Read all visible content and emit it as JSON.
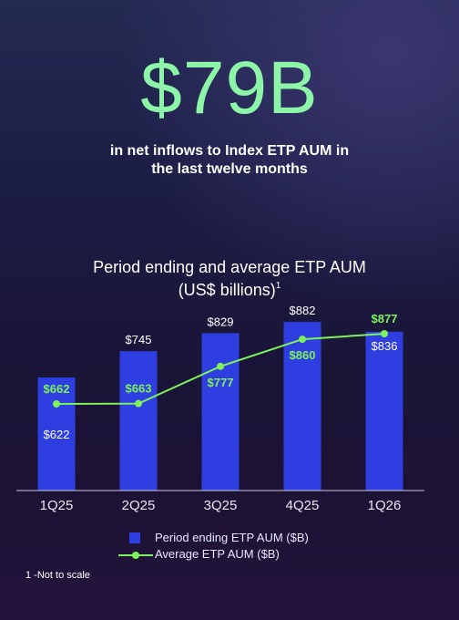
{
  "headline": "$79B",
  "subhead_line1": "in net inflows to Index ETP AUM in",
  "subhead_line2": "the last twelve months",
  "footnote": "1 -Not to scale",
  "colors": {
    "headline": "#8cf5a8",
    "bar": "#2f3ee0",
    "line": "#7df25a"
  },
  "chart_data": {
    "type": "bar",
    "title": "Period ending and average ETP AUM",
    "subtitle": "(US$ billions)",
    "subtitle_footnote_marker": "1",
    "categories": [
      "1Q25",
      "2Q25",
      "3Q25",
      "4Q25",
      "1Q26"
    ],
    "series": [
      {
        "name": "Period ending ETP AUM ($B)",
        "type": "bar",
        "values": [
          622,
          745,
          829,
          882,
          836
        ],
        "labels": [
          "$622",
          "$745",
          "$829",
          "$882",
          "$836"
        ]
      },
      {
        "name": "Average ETP AUM ($B)",
        "type": "line",
        "values": [
          662,
          663,
          777,
          860,
          877
        ],
        "labels": [
          "$662",
          "$663",
          "$777",
          "$860",
          "$877"
        ]
      }
    ],
    "legend": "bottom",
    "grid": false,
    "note": "Not to scale"
  }
}
